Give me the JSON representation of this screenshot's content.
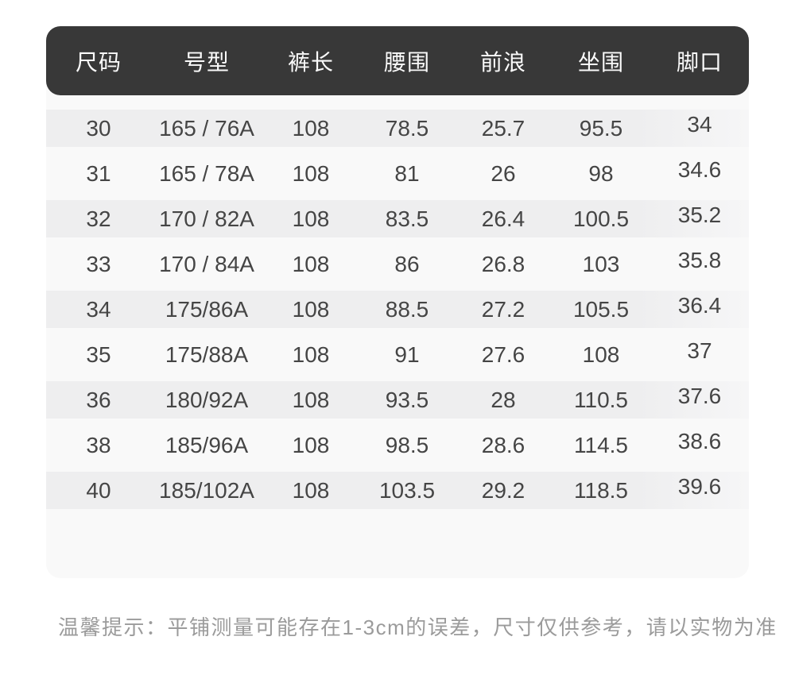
{
  "chart_data": {
    "type": "table",
    "columns": [
      "尺码",
      "号型",
      "裤长",
      "腰围",
      "前浪",
      "坐围",
      "脚口"
    ],
    "rows": [
      [
        "30",
        "165 / 76A",
        "108",
        "78.5",
        "25.7",
        "95.5",
        "34"
      ],
      [
        "31",
        "165 / 78A",
        "108",
        "81",
        "26",
        "98",
        "34.6"
      ],
      [
        "32",
        "170 / 82A",
        "108",
        "83.5",
        "26.4",
        "100.5",
        "35.2"
      ],
      [
        "33",
        "170 / 84A",
        "108",
        "86",
        "26.8",
        "103",
        "35.8"
      ],
      [
        "34",
        "175/86A",
        "108",
        "88.5",
        "27.2",
        "105.5",
        "36.4"
      ],
      [
        "35",
        "175/88A",
        "108",
        "91",
        "27.6",
        "108",
        "37"
      ],
      [
        "36",
        "180/92A",
        "108",
        "93.5",
        "28",
        "110.5",
        "37.6"
      ],
      [
        "38",
        "185/96A",
        "108",
        "98.5",
        "28.6",
        "114.5",
        "38.6"
      ],
      [
        "40",
        "185/102A",
        "108",
        "103.5",
        "29.2",
        "118.5",
        "39.6"
      ]
    ],
    "layout": {
      "striped_rows": "odd rows shaded",
      "header_style": "dark rounded bar"
    }
  },
  "note": {
    "text": "温馨提示：平铺测量可能存在1-3cm的误差，尺寸仅供参考，请以实物为准"
  },
  "colors": {
    "header_bg": "#383838",
    "header_text": "#fafafa",
    "panel_bg": "#f9f9f9",
    "stripe": "#eeeeef",
    "body_text": "#454545",
    "note_text": "#9b9b9b",
    "page_bg": "#ffffff"
  }
}
